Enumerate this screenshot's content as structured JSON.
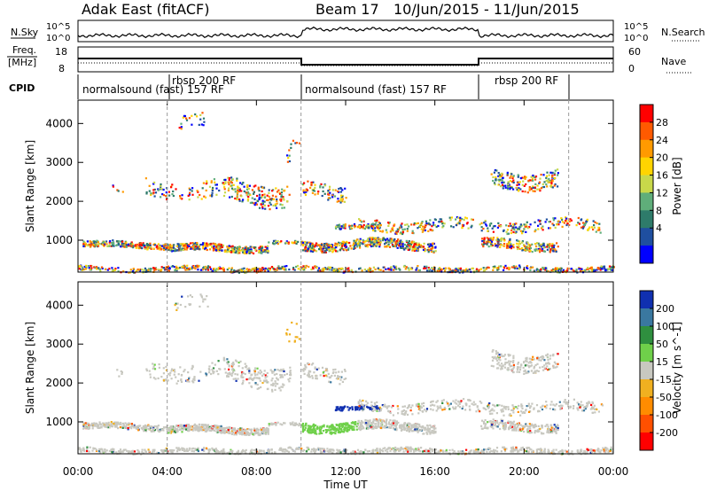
{
  "header": {
    "title": "Adak East (fitACF)",
    "beam": "Beam 17",
    "date_range": "10/Jun/2015 - 11/Jun/2015"
  },
  "strips": {
    "nsky_label": "N.Sky",
    "nsky_ticks": [
      "10^5",
      "10^0"
    ],
    "nsearch_label": "N.Search",
    "nsearch_ticks": [
      "10^5",
      "10^0"
    ],
    "freq_label": "Freq.",
    "freq_unit": "[MHz]",
    "freq_ticks": [
      "18",
      "8"
    ],
    "nave_label": "Nave",
    "nave_ticks": [
      "60",
      "0"
    ],
    "cpid_label": "CPID",
    "cpid_segments": [
      {
        "label": "normalsound (fast) 157 RF",
        "start": 0,
        "end": 4
      },
      {
        "label": "rbsp 200 RF",
        "start": 4,
        "end": 10
      },
      {
        "label": "normalsound (fast) 157 RF",
        "start": 10,
        "end": 18
      },
      {
        "label": "rbsp 200 RF",
        "start": 18,
        "end": 22
      }
    ]
  },
  "chart_data": [
    {
      "type": "heatmap",
      "panel": "power",
      "ylabel": "Slant Range [km]",
      "ylim": [
        180,
        4600
      ],
      "yticks": [
        1000,
        2000,
        3000,
        4000
      ],
      "xlim_hours": [
        0,
        24
      ],
      "colorbar_label": "Power [dB]",
      "colorbar_ticks": [
        "28",
        "24",
        "20",
        "16",
        "12",
        "8",
        "4"
      ],
      "colorbar_colors": [
        "#ff0000",
        "#ff5a00",
        "#ff9a00",
        "#ffd400",
        "#c8d84a",
        "#5fae7a",
        "#2e7b6a",
        "#1f4fa0",
        "#0000ff"
      ]
    },
    {
      "type": "heatmap",
      "panel": "velocity",
      "ylabel": "Slant Range [km]",
      "ylim": [
        180,
        4600
      ],
      "yticks": [
        1000,
        2000,
        3000,
        4000
      ],
      "xlim_hours": [
        0,
        24
      ],
      "colorbar_label": "Velocity [m s^-1]",
      "colorbar_ticks": [
        "200",
        "100",
        "50",
        "15",
        "-15",
        "-50",
        "-100",
        "-200"
      ],
      "colorbar_colors": [
        "#1030b0",
        "#3a78a0",
        "#2f8f3f",
        "#6fd04a",
        "#c8c8c0",
        "#f0b020",
        "#ff8c00",
        "#ff5000",
        "#ff0000"
      ]
    }
  ],
  "xaxis": {
    "label": "Time UT",
    "ticks": [
      "00:00",
      "04:00",
      "08:00",
      "12:00",
      "16:00",
      "20:00",
      "00:00"
    ]
  }
}
